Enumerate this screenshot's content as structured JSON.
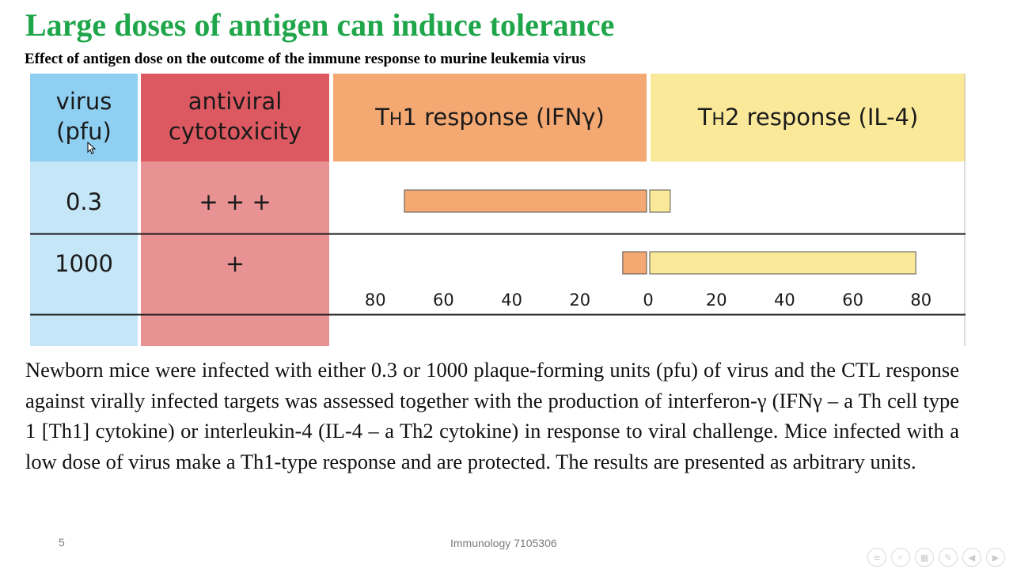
{
  "slide": {
    "title": "Large doses of antigen can induce tolerance",
    "subtitle": "Effect of antigen dose on the outcome of the immune response to murine leukemia virus",
    "caption": "Newborn mice were infected with either 0.3 or 1000 plaque-forming units (pfu) of virus and the CTL response against virally infected targets was assessed together with the production of interferon-γ (IFNγ – a Th cell type 1 [Th1] cytokine) or interleukin-4 (IL-4 – a Th2 cytokine) in response to viral challenge. Mice infected with a low dose of virus make a Th1-type response and are protected. The results are presented as arbitrary units.",
    "slide_number": "5",
    "footer": "Immunology 7105306"
  },
  "figure": {
    "headers": {
      "virus_line1": "virus",
      "virus_line2": "(pfu)",
      "cytotox_line1": "antiviral",
      "cytotox_line2": "cytotoxicity",
      "th1_prefix": "T",
      "th1_sub": "H",
      "th1_rest": "1 response (IFNγ)",
      "th2_prefix": "T",
      "th2_sub": "H",
      "th2_rest": "2 response (IL-4)"
    },
    "rows": [
      {
        "dose": "0.3",
        "cytotoxicity": "+ + +"
      },
      {
        "dose": "1000",
        "cytotoxicity": "+"
      }
    ],
    "axis_ticks": [
      "80",
      "60",
      "40",
      "20",
      "0",
      "20",
      "40",
      "60",
      "80"
    ],
    "colors": {
      "virus_header": "#8fcff2",
      "virus_body": "#c5e6f7",
      "cytotox_header": "#dd5961",
      "cytotox_body": "#e89294",
      "th1": "#f4a872",
      "th2": "#fbe99a"
    }
  },
  "chart_data": {
    "type": "bar",
    "orientation": "horizontal-diverging",
    "categories": [
      "0.3",
      "1000"
    ],
    "series": [
      {
        "name": "TH1 response (IFNγ)",
        "values": [
          71,
          7
        ]
      },
      {
        "name": "TH2 response (IL-4)",
        "values": [
          6,
          78
        ]
      }
    ],
    "xlim": [
      -80,
      80
    ],
    "grid": false
  },
  "navbar": {
    "icons": [
      "menu-icon",
      "search-icon",
      "thumbnails-icon",
      "pen-icon",
      "previous-icon",
      "next-icon"
    ]
  }
}
